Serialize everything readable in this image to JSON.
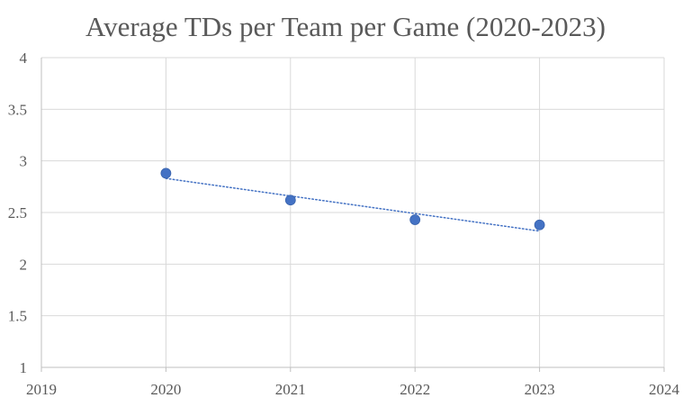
{
  "chart_data": {
    "type": "scatter",
    "title": "Average TDs per Team per Game (2020-2023)",
    "xlabel": "",
    "ylabel": "",
    "xlim": [
      2019,
      2024
    ],
    "ylim": [
      1,
      4
    ],
    "x_ticks": [
      "2019",
      "2020",
      "2021",
      "2022",
      "2023",
      "2024"
    ],
    "y_ticks": [
      "1",
      "1.5",
      "2",
      "2.5",
      "3",
      "3.5",
      "4"
    ],
    "grid": true,
    "legend": "none",
    "series": [
      {
        "x": [
          2020,
          2021,
          2022,
          2023
        ],
        "y": [
          2.88,
          2.62,
          2.43,
          2.38
        ],
        "color": "#4472C4"
      }
    ],
    "trendline": {
      "type": "linear",
      "style": "dotted",
      "color": "#4472C4",
      "from": [
        2020,
        2.83
      ],
      "to": [
        2023,
        2.32
      ]
    }
  }
}
